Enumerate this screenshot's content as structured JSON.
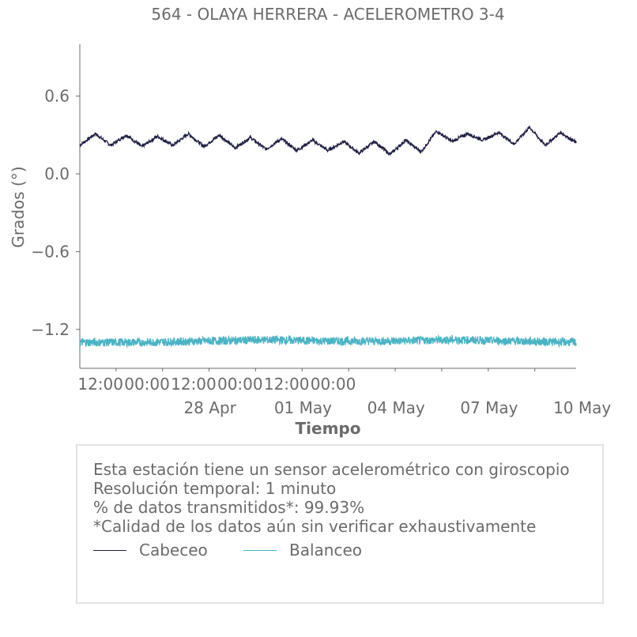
{
  "chart_data": {
    "type": "line",
    "title": "564 - OLAYA HERRERA - ACELEROMETRO 3-4",
    "xlabel": "Tiempo",
    "ylabel": "Grados (°)",
    "ylim": [
      -1.5,
      1.0
    ],
    "xlim": [
      "2024-04-25T08:00",
      "2024-05-11T08:00"
    ],
    "x_minor_ticks": [
      "12:00",
      "00:00",
      "12:00",
      "00:00",
      "12:00",
      "00:00"
    ],
    "x_major_ticks": [
      "28 Apr",
      "01 May",
      "04 May",
      "07 May",
      "10 May"
    ],
    "y_ticks": [
      "0.6",
      "0.0",
      "−0.6",
      "−1.2"
    ],
    "grid": false,
    "series": [
      {
        "name": "Cabeceo",
        "color": "#1f1f45",
        "x": [
          "2024-04-25T08:00",
          "2024-04-25T20:00",
          "2024-04-26T08:00",
          "2024-04-26T20:00",
          "2024-04-27T08:00",
          "2024-04-27T20:00",
          "2024-04-28T08:00",
          "2024-04-28T20:00",
          "2024-04-29T08:00",
          "2024-04-29T20:00",
          "2024-04-30T08:00",
          "2024-04-30T20:00",
          "2024-05-01T08:00",
          "2024-05-01T20:00",
          "2024-05-02T08:00",
          "2024-05-02T20:00",
          "2024-05-03T08:00",
          "2024-05-03T20:00",
          "2024-05-04T08:00",
          "2024-05-04T20:00",
          "2024-05-05T08:00",
          "2024-05-05T20:00",
          "2024-05-06T08:00",
          "2024-05-06T20:00",
          "2024-05-07T08:00",
          "2024-05-07T20:00",
          "2024-05-08T08:00",
          "2024-05-08T20:00",
          "2024-05-09T08:00",
          "2024-05-09T20:00",
          "2024-05-10T08:00",
          "2024-05-10T20:00",
          "2024-05-11T08:00"
        ],
        "values": [
          0.22,
          0.31,
          0.22,
          0.3,
          0.21,
          0.29,
          0.22,
          0.31,
          0.21,
          0.3,
          0.2,
          0.28,
          0.19,
          0.27,
          0.18,
          0.26,
          0.18,
          0.25,
          0.16,
          0.25,
          0.15,
          0.26,
          0.17,
          0.33,
          0.25,
          0.31,
          0.26,
          0.32,
          0.23,
          0.36,
          0.22,
          0.32,
          0.24
        ]
      },
      {
        "name": "Balanceo",
        "color": "#4ab3c4",
        "x": [
          "2024-04-25T08:00",
          "2024-04-27T08:00",
          "2024-04-29T08:00",
          "2024-05-01T08:00",
          "2024-05-03T08:00",
          "2024-05-05T08:00",
          "2024-05-07T08:00",
          "2024-05-09T08:00",
          "2024-05-11T08:00"
        ],
        "values": [
          -1.3,
          -1.3,
          -1.29,
          -1.28,
          -1.29,
          -1.29,
          -1.28,
          -1.29,
          -1.3
        ]
      }
    ]
  },
  "info": {
    "line1": "Esta estación tiene un sensor acelerométrico con giroscopio",
    "line2": "Resolución temporal: 1 minuto",
    "line3": "% de datos transmitidos*: 99.93%",
    "line4": "*Calidad de los datos aún sin verificar exhaustivamente"
  },
  "legend": [
    {
      "label": "Cabeceo",
      "color": "#1f1f45"
    },
    {
      "label": "Balanceo",
      "color": "#4ab3c4"
    }
  ]
}
